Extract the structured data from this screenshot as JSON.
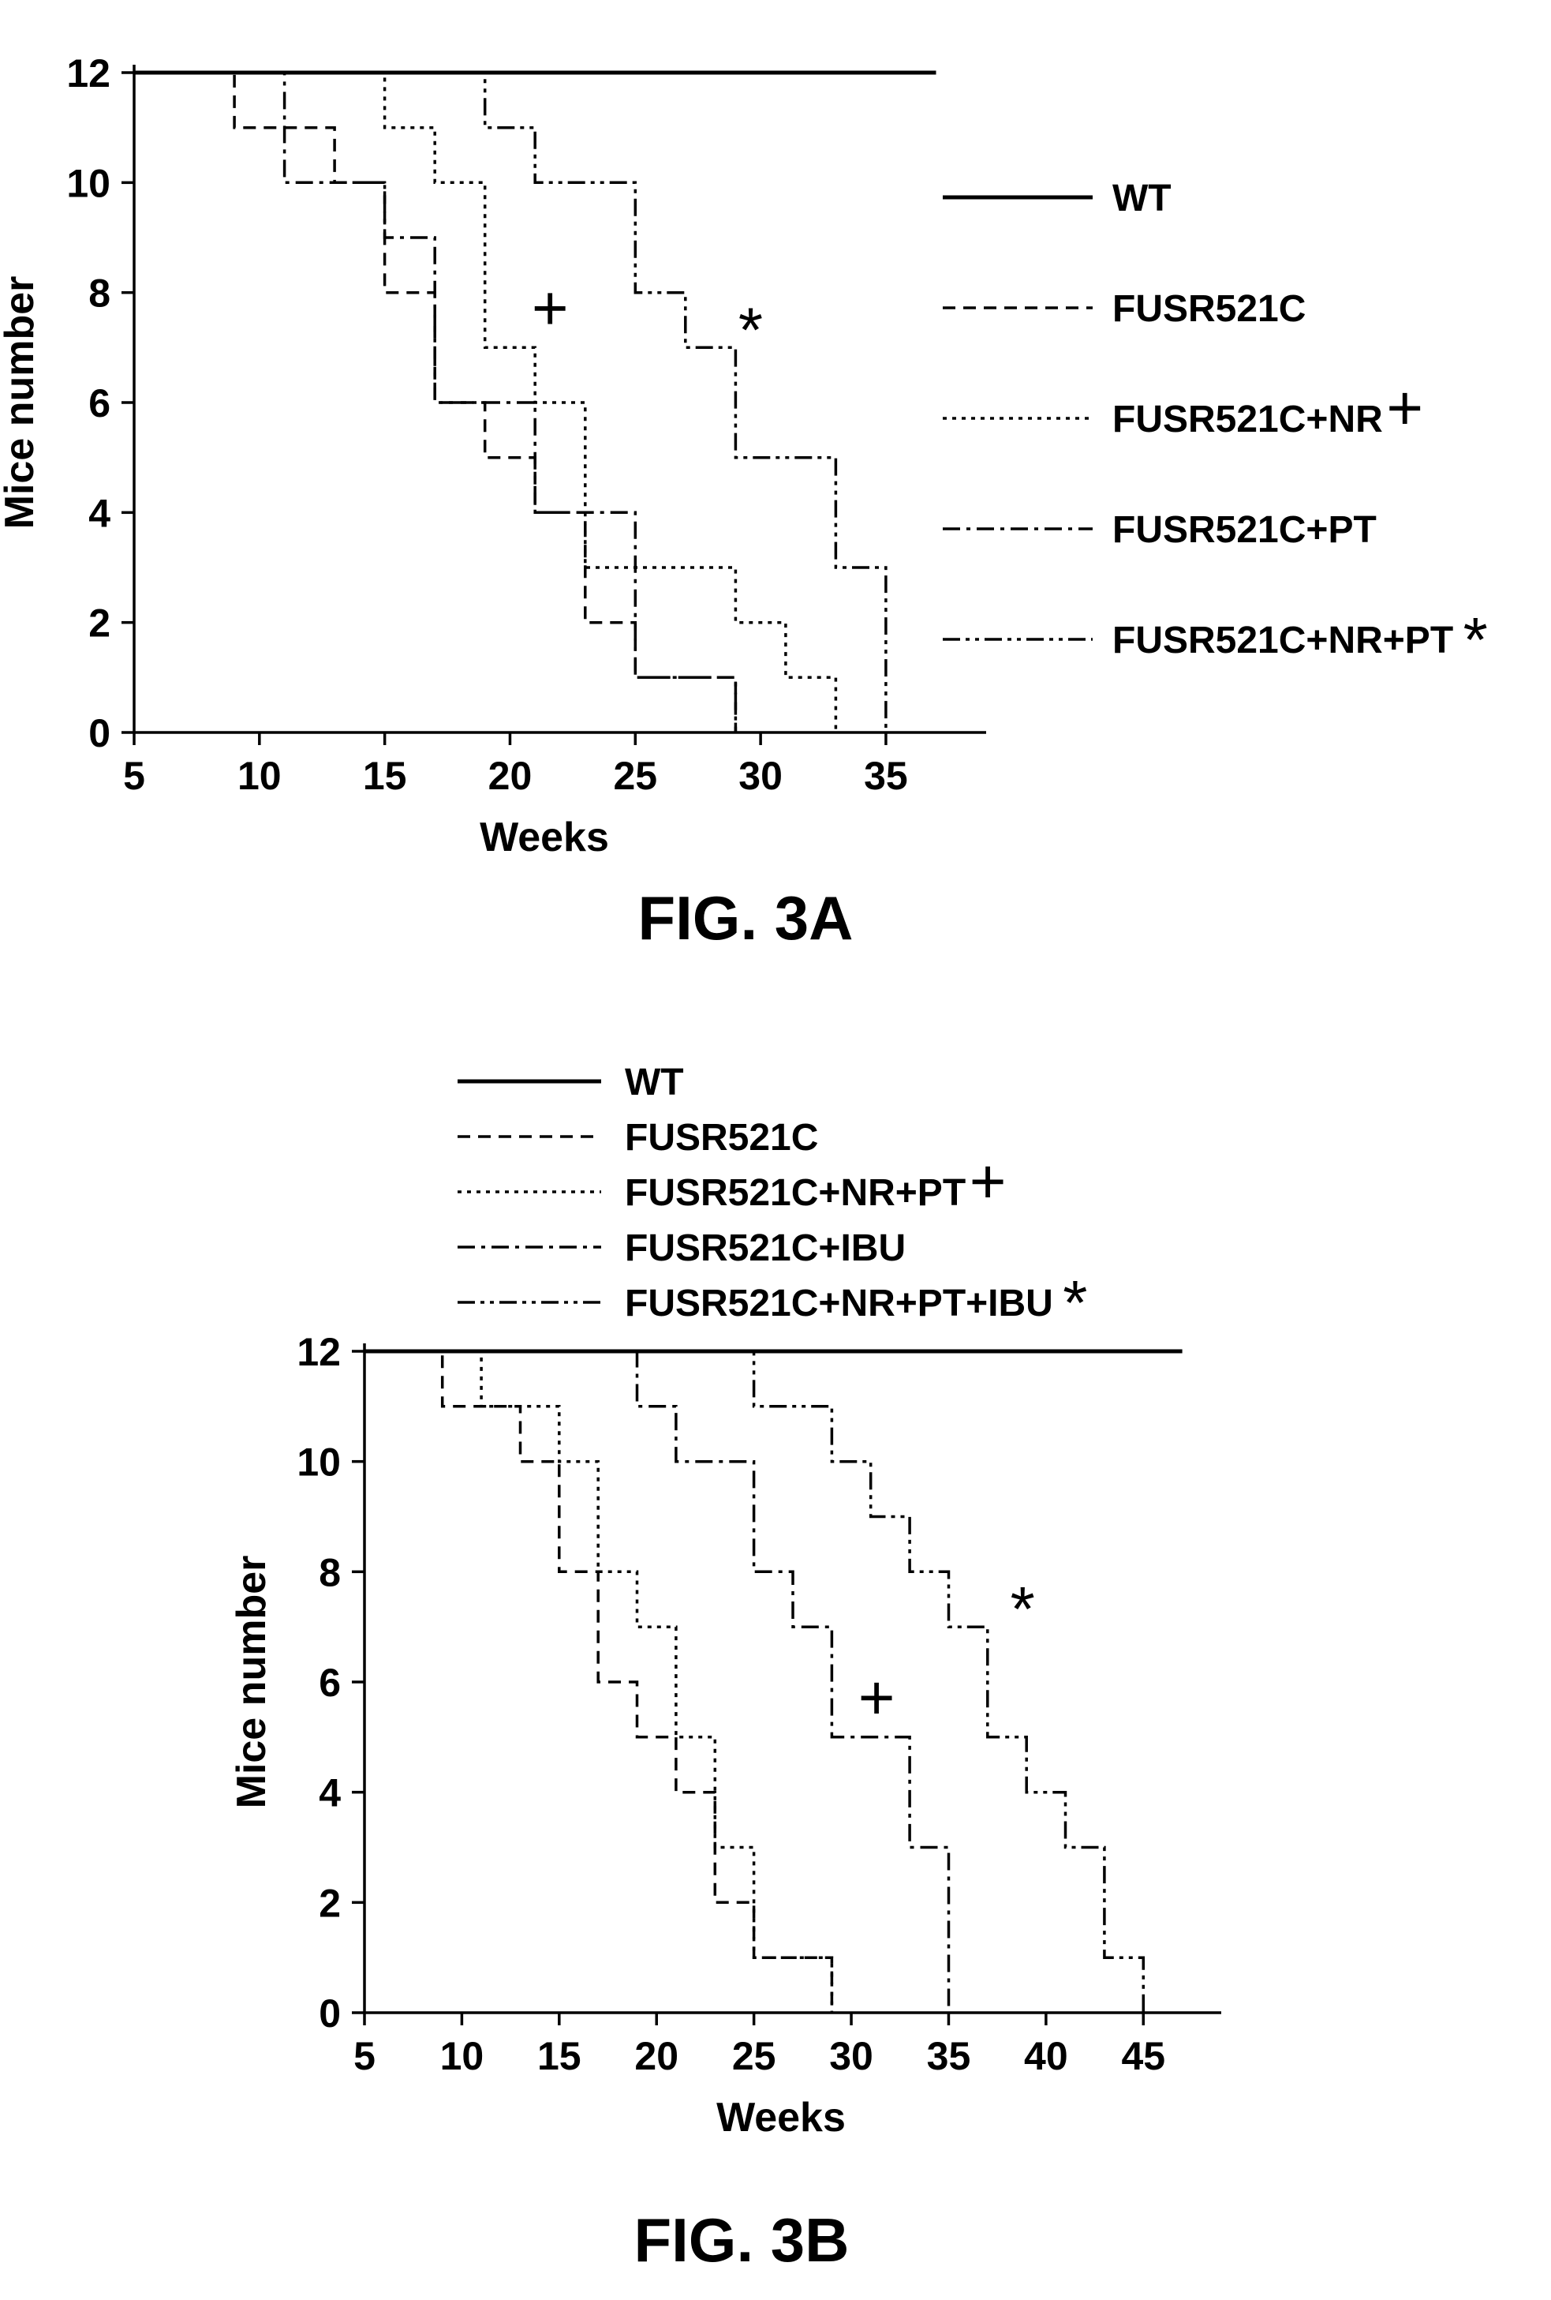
{
  "chart_data": [
    {
      "type": "line",
      "subtype": "step",
      "caption": "FIG. 3A",
      "xlabel": "Weeks",
      "ylabel": "Mice number",
      "xlim": [
        5,
        39
      ],
      "ylim": [
        0,
        12
      ],
      "x_ticks": [
        "5",
        "10",
        "15",
        "20",
        "25",
        "30",
        "35"
      ],
      "y_ticks": [
        "0",
        "2",
        "4",
        "6",
        "8",
        "10",
        "12"
      ],
      "legend_position": "right",
      "series": [
        {
          "name": "WT",
          "marker": "",
          "dash": "solid",
          "points": [
            [
              5,
              12
            ],
            [
              37,
              12
            ]
          ]
        },
        {
          "name": "FUSR521C",
          "marker": "",
          "dash": "dashed",
          "points": [
            [
              5,
              12
            ],
            [
              9,
              12
            ],
            [
              9,
              11
            ],
            [
              13,
              11
            ],
            [
              13,
              10
            ],
            [
              15,
              10
            ],
            [
              15,
              8
            ],
            [
              17,
              8
            ],
            [
              17,
              6
            ],
            [
              19,
              6
            ],
            [
              19,
              5
            ],
            [
              21,
              5
            ],
            [
              21,
              4
            ],
            [
              23,
              4
            ],
            [
              23,
              2
            ],
            [
              25,
              2
            ],
            [
              25,
              1
            ],
            [
              29,
              1
            ],
            [
              29,
              0
            ]
          ]
        },
        {
          "name": "FUSR521C+NR",
          "marker": "+",
          "dash": "dotted",
          "points": [
            [
              5,
              12
            ],
            [
              15,
              12
            ],
            [
              15,
              11
            ],
            [
              17,
              11
            ],
            [
              17,
              10
            ],
            [
              19,
              10
            ],
            [
              19,
              7
            ],
            [
              21,
              7
            ],
            [
              21,
              6
            ],
            [
              23,
              6
            ],
            [
              23,
              3
            ],
            [
              29,
              3
            ],
            [
              29,
              2
            ],
            [
              31,
              2
            ],
            [
              31,
              1
            ],
            [
              33,
              1
            ],
            [
              33,
              0
            ]
          ]
        },
        {
          "name": "FUSR521C+PT",
          "marker": "",
          "dash": "dashdot",
          "points": [
            [
              5,
              12
            ],
            [
              11,
              12
            ],
            [
              11,
              10
            ],
            [
              15,
              10
            ],
            [
              15,
              9
            ],
            [
              17,
              9
            ],
            [
              17,
              6
            ],
            [
              21,
              6
            ],
            [
              21,
              4
            ],
            [
              25,
              4
            ],
            [
              25,
              1
            ],
            [
              29,
              1
            ],
            [
              29,
              0
            ]
          ]
        },
        {
          "name": "FUSR521C+NR+PT",
          "marker": "*",
          "dash": "dashdotdot",
          "points": [
            [
              5,
              12
            ],
            [
              19,
              12
            ],
            [
              19,
              11
            ],
            [
              21,
              11
            ],
            [
              21,
              10
            ],
            [
              25,
              10
            ],
            [
              25,
              8
            ],
            [
              27,
              8
            ],
            [
              27,
              7
            ],
            [
              29,
              7
            ],
            [
              29,
              5
            ],
            [
              33,
              5
            ],
            [
              33,
              3
            ],
            [
              35,
              3
            ],
            [
              35,
              0
            ]
          ]
        }
      ],
      "annotations": [
        {
          "text": "+",
          "x": 21.6,
          "y": 7.7
        },
        {
          "text": "*",
          "x": 29.6,
          "y": 7.3
        }
      ]
    },
    {
      "type": "line",
      "subtype": "step",
      "caption": "FIG. 3B",
      "xlabel": "Weeks",
      "ylabel": "Mice number",
      "xlim": [
        5,
        49
      ],
      "ylim": [
        0,
        12
      ],
      "x_ticks": [
        "5",
        "10",
        "15",
        "20",
        "25",
        "30",
        "35",
        "40",
        "45"
      ],
      "y_ticks": [
        "0",
        "2",
        "4",
        "6",
        "8",
        "10",
        "12"
      ],
      "legend_position": "top",
      "series": [
        {
          "name": "WT",
          "marker": "",
          "dash": "solid",
          "points": [
            [
              5,
              12
            ],
            [
              47,
              12
            ]
          ]
        },
        {
          "name": "FUSR521C",
          "marker": "",
          "dash": "dashed",
          "points": [
            [
              5,
              12
            ],
            [
              9,
              12
            ],
            [
              9,
              11
            ],
            [
              13,
              11
            ],
            [
              13,
              10
            ],
            [
              15,
              10
            ],
            [
              15,
              8
            ],
            [
              17,
              8
            ],
            [
              17,
              6
            ],
            [
              19,
              6
            ],
            [
              19,
              5
            ],
            [
              21,
              5
            ],
            [
              21,
              4
            ],
            [
              23,
              4
            ],
            [
              23,
              2
            ],
            [
              25,
              2
            ],
            [
              25,
              1
            ],
            [
              29,
              1
            ],
            [
              29,
              0
            ]
          ]
        },
        {
          "name": "FUSR521C+NR+PT",
          "marker": "+",
          "dash": "dotted",
          "points": [
            [
              5,
              12
            ],
            [
              11,
              12
            ],
            [
              11,
              11
            ],
            [
              15,
              11
            ],
            [
              15,
              10
            ],
            [
              17,
              10
            ],
            [
              17,
              8
            ],
            [
              19,
              8
            ],
            [
              19,
              7
            ],
            [
              21,
              7
            ],
            [
              21,
              5
            ],
            [
              23,
              5
            ],
            [
              23,
              3
            ],
            [
              25,
              3
            ],
            [
              25,
              1
            ],
            [
              29,
              1
            ],
            [
              29,
              0
            ]
          ]
        },
        {
          "name": "FUSR521C+IBU",
          "marker": "",
          "dash": "dashdot",
          "points": [
            [
              5,
              12
            ],
            [
              19,
              12
            ],
            [
              19,
              11
            ],
            [
              21,
              11
            ],
            [
              21,
              10
            ],
            [
              25,
              10
            ],
            [
              25,
              8
            ],
            [
              27,
              8
            ],
            [
              27,
              7
            ],
            [
              29,
              7
            ],
            [
              29,
              5
            ],
            [
              33,
              5
            ],
            [
              33,
              3
            ],
            [
              35,
              3
            ],
            [
              35,
              0
            ]
          ]
        },
        {
          "name": "FUSR521C+NR+PT+IBU",
          "marker": "*",
          "dash": "dashdotdot",
          "points": [
            [
              5,
              12
            ],
            [
              25,
              12
            ],
            [
              25,
              11
            ],
            [
              29,
              11
            ],
            [
              29,
              10
            ],
            [
              31,
              10
            ],
            [
              31,
              9
            ],
            [
              33,
              9
            ],
            [
              33,
              8
            ],
            [
              35,
              8
            ],
            [
              35,
              7
            ],
            [
              37,
              7
            ],
            [
              37,
              5
            ],
            [
              39,
              5
            ],
            [
              39,
              4
            ],
            [
              41,
              4
            ],
            [
              41,
              3
            ],
            [
              43,
              3
            ],
            [
              43,
              1
            ],
            [
              45,
              1
            ],
            [
              45,
              0
            ]
          ]
        }
      ],
      "annotations": [
        {
          "text": "+",
          "x": 31.3,
          "y": 5.7
        },
        {
          "text": "*",
          "x": 38.8,
          "y": 7.3
        }
      ]
    }
  ]
}
